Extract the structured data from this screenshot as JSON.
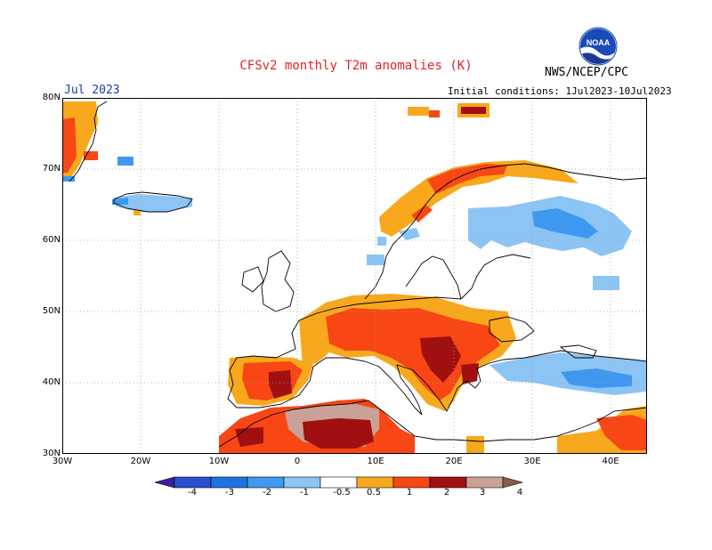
{
  "title": "CFSv2 monthly T2m anomalies (K)",
  "month": "Jul 2023",
  "agency": "NWS/NCEP/CPC",
  "logo_text": "NOAA",
  "initial_conditions": "Initial conditions: 1Jul2023-10Jul2023",
  "lat_labels": [
    "80N",
    "70N",
    "60N",
    "50N",
    "40N",
    "30N"
  ],
  "lon_labels": [
    "30W",
    "20W",
    "10W",
    "0",
    "10E",
    "20E",
    "30E",
    "40E"
  ],
  "colorbar": {
    "labels": [
      "-4",
      "-3",
      "-2",
      "-1",
      "-0.5",
      "0.5",
      "1",
      "2",
      "3",
      "4"
    ],
    "colors": [
      "#3b1fa0",
      "#2c4fd0",
      "#1c72e0",
      "#3f98f0",
      "#8cc4f4",
      "#ffffff",
      "#f8a81c",
      "#f84614",
      "#a01010",
      "#caa196",
      "#8a5a4c"
    ]
  },
  "colors": {
    "title": "#e8202a",
    "month": "#1c3aa8",
    "grid": "#a0a0a0"
  }
}
